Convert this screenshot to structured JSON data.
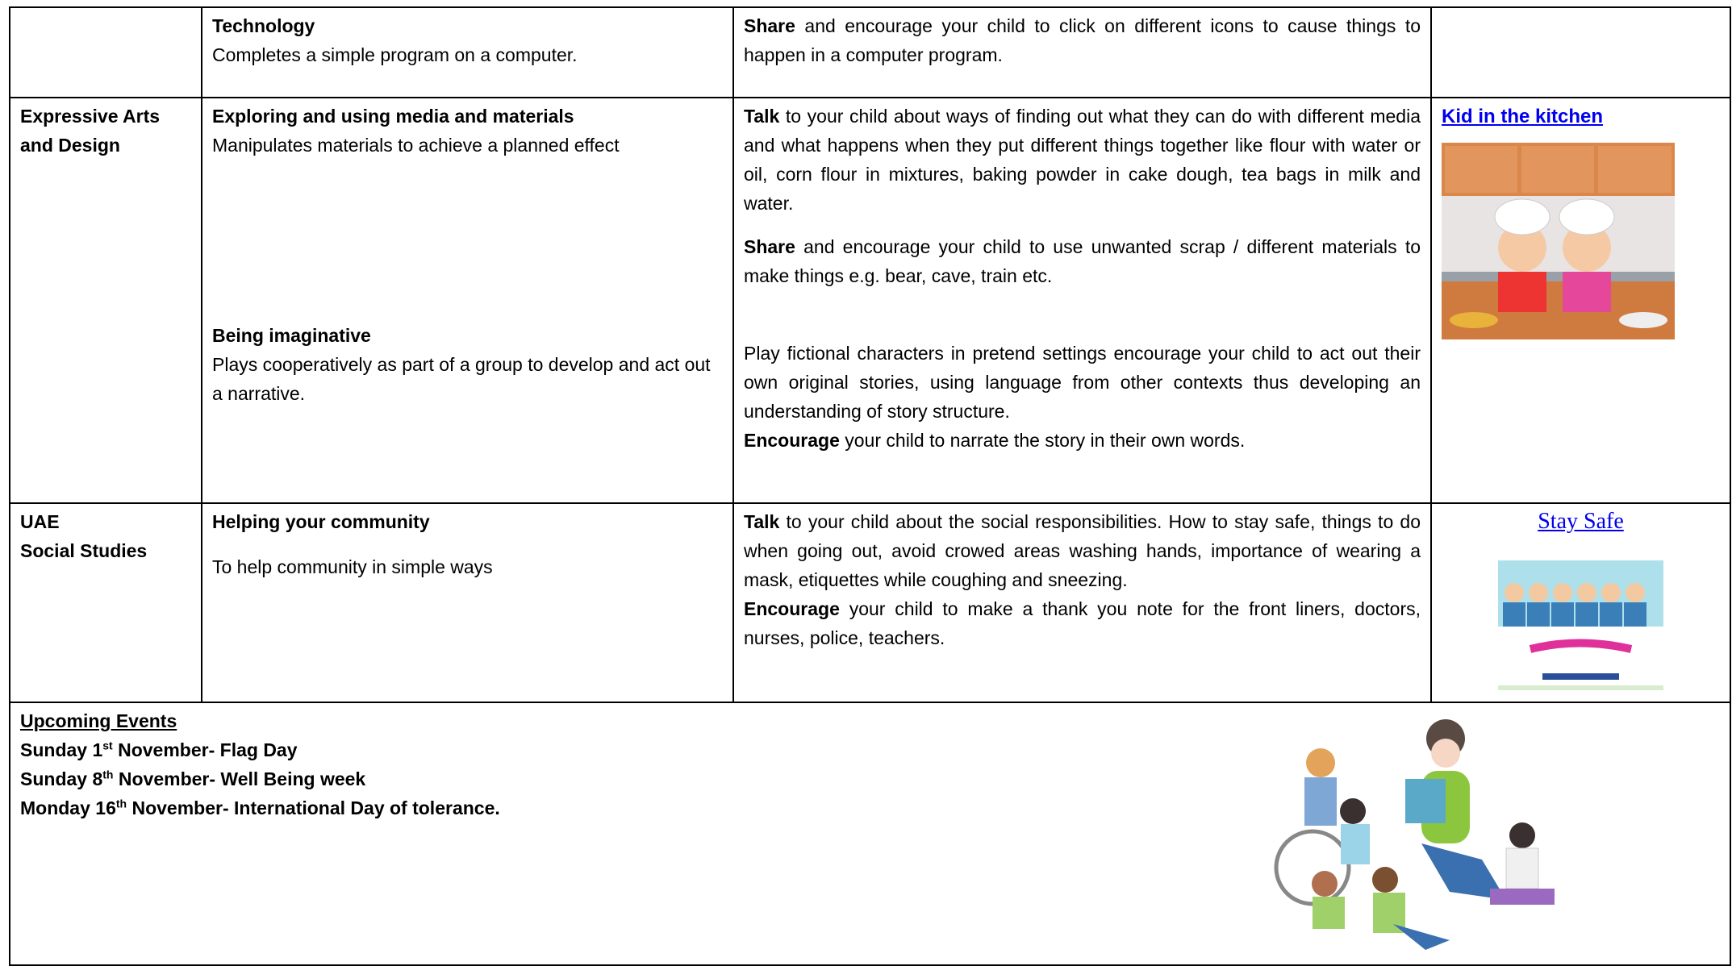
{
  "table": {
    "rows": [
      {
        "skills": [
          {
            "title": "Technology",
            "description": "Completes a simple program on a computer."
          }
        ],
        "activities": [
          {
            "lead": "Share",
            "text": "and encourage your child to click on different icons to cause things to happen in a computer program."
          }
        ]
      },
      {
        "area": [
          "Expressive Arts",
          "and Design"
        ],
        "skills": [
          {
            "title": "Exploring and using media and materials",
            "description": "Manipulates materials to achieve a planned effect"
          },
          {
            "title": "Being imaginative",
            "description": "Plays cooperatively as part of a group to develop and act out a narrative."
          }
        ],
        "activities": [
          {
            "lead": "Talk",
            "text": "to your child about ways of finding out what they can do with different media and what happens when they put different things together like flour with water or oil, corn flour in mixtures, baking powder in cake dough, tea bags in milk and water."
          },
          {
            "lead": "Share",
            "text": "and encourage your child to use unwanted scrap / different materials to make things e.g. bear, cave, train etc."
          },
          {
            "text": "Play fictional characters in pretend settings encourage your child to act out their own original stories, using language from other contexts thus developing an understanding of story structure."
          },
          {
            "lead": "Encourage",
            "text": "your child to narrate the story in their own words."
          }
        ],
        "resource": {
          "link": "Kid in the kitchen"
        }
      },
      {
        "area": [
          "UAE",
          "Social Studies"
        ],
        "skills": [
          {
            "title": "Helping your community",
            "description": "To help community in simple ways"
          }
        ],
        "activities": [
          {
            "lead": "Talk",
            "text": "to your child about the social responsibilities. How to stay safe, things to do when going out, avoid crowed areas washing hands, importance of wearing a mask, etiquettes while coughing and sneezing."
          },
          {
            "lead": "Encourage",
            "text": "your child to make a thank you note for the front liners, doctors, nurses, police, teachers."
          }
        ],
        "resource": {
          "link": "Stay Safe"
        }
      }
    ]
  },
  "events": {
    "title": "Upcoming Events",
    "items": [
      {
        "day": "Sunday 1",
        "sup": "st",
        "text": "November- Flag Day"
      },
      {
        "day": "Sunday 8",
        "sup": "th",
        "text": "November- Well Being week"
      },
      {
        "day": "Monday 16",
        "sup": "th",
        "text": "November- International Day of tolerance."
      }
    ]
  }
}
